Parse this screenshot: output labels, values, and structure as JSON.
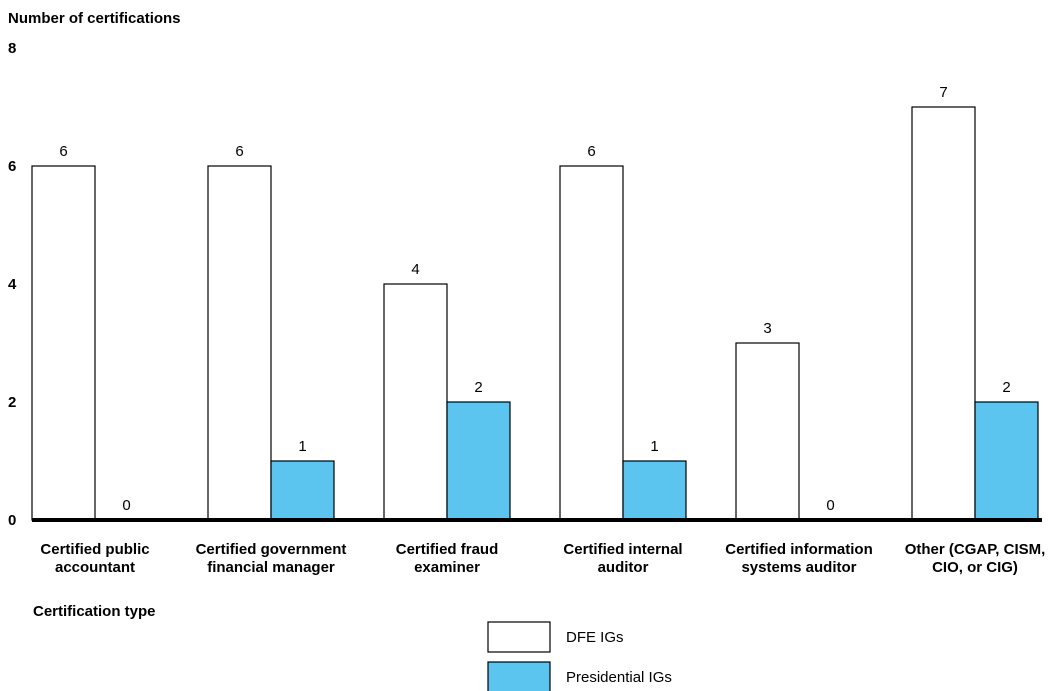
{
  "chart_data": {
    "type": "bar",
    "ylabel": "Number of certifications",
    "xlabel": "Certification type",
    "ylim": [
      0,
      8
    ],
    "yticks": [
      "0",
      "2",
      "4",
      "6",
      "8"
    ],
    "categories": [
      [
        "Certified public",
        "accountant"
      ],
      [
        "Certified government",
        "financial manager"
      ],
      [
        "Certified fraud",
        "examiner"
      ],
      [
        "Certified internal",
        "auditor"
      ],
      [
        "Certified information",
        "systems auditor"
      ],
      [
        "Other (CGAP, CISM,",
        "CIO, or CIG)"
      ]
    ],
    "series": [
      {
        "name": "DFE IGs",
        "values": [
          6,
          6,
          4,
          6,
          3,
          7
        ],
        "color": "#ffffff"
      },
      {
        "name": "Presidential IGs",
        "values": [
          0,
          1,
          2,
          1,
          0,
          2
        ],
        "color": "#5bc5ef"
      }
    ],
    "legend_position": "bottom-center",
    "grid": false
  }
}
